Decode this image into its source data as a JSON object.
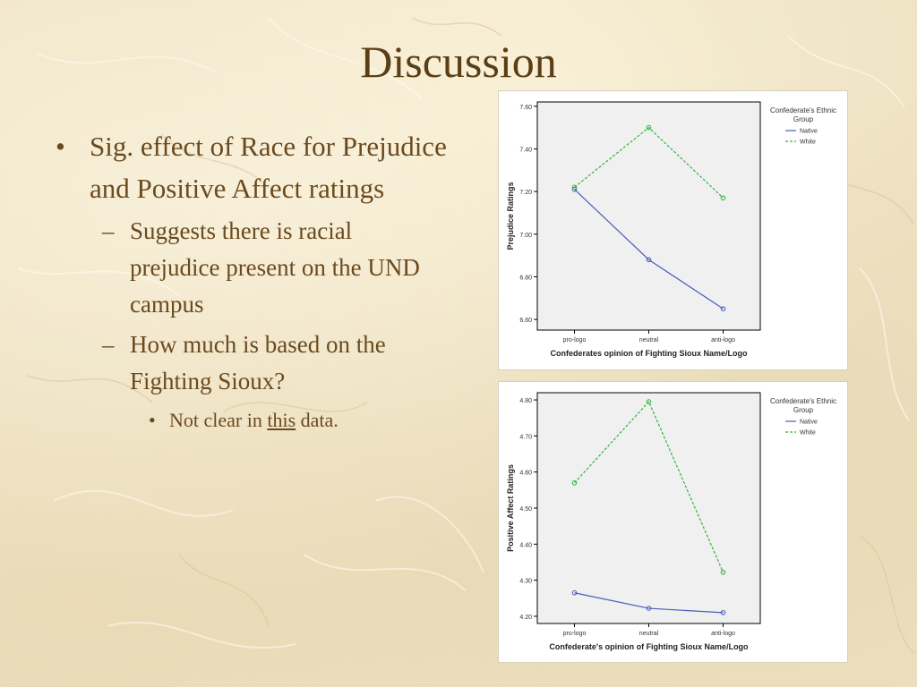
{
  "slide": {
    "title": "Discussion",
    "bullets": [
      {
        "text": "Sig. effect of Race for Prejudice and Positive Affect ratings",
        "sub": [
          {
            "text": "Suggests there is racial prejudice present on the UND campus"
          },
          {
            "text": "How much is based on the Fighting Sioux?"
          }
        ]
      }
    ],
    "sub_sub": {
      "prefix": "Not clear in",
      "emphasis": "this",
      "suffix": "data."
    }
  },
  "colors": {
    "native": "#4a5cb8",
    "white": "#2fb33a",
    "text": "#6b4a1e",
    "plot_bg": "#f0f0f0"
  },
  "chart_data": [
    {
      "type": "line",
      "categories": [
        "pro-logo",
        "neutral",
        "anti-logo"
      ],
      "series": [
        {
          "name": "Native",
          "values": [
            7.21,
            6.88,
            6.65
          ],
          "style": "solid"
        },
        {
          "name": "White",
          "values": [
            7.22,
            7.5,
            7.17
          ],
          "style": "dashed"
        }
      ],
      "xlabel": "Confederates opinion of Fighting Sioux Name/Logo",
      "ylabel": "Prejudice Ratings",
      "ylim": [
        6.55,
        7.62
      ],
      "yticks": [
        "6.60",
        "6.80",
        "7.00",
        "7.20",
        "7.40",
        "7.60"
      ],
      "legend_title": "Confederate's Ethnic Group",
      "legend_position": "right"
    },
    {
      "type": "line",
      "categories": [
        "pro-logo",
        "neutral",
        "anti-logo"
      ],
      "series": [
        {
          "name": "Native",
          "values": [
            4.265,
            4.222,
            4.21
          ],
          "style": "solid"
        },
        {
          "name": "White",
          "values": [
            4.57,
            4.795,
            4.322
          ],
          "style": "dashed"
        }
      ],
      "xlabel": "Confederate's opinion of Fighting Sioux Name/Logo",
      "ylabel": "Positive Affect Ratings",
      "ylim": [
        4.18,
        4.82
      ],
      "yticks": [
        "4.20",
        "4.30",
        "4.40",
        "4.50",
        "4.60",
        "4.70",
        "4.80"
      ],
      "legend_title": "Confederate's Ethnic Group",
      "legend_position": "right"
    }
  ]
}
